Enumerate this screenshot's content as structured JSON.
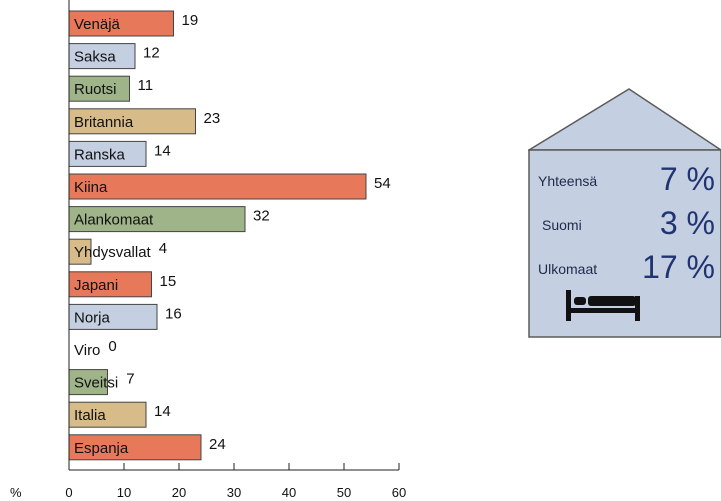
{
  "chart_data": {
    "type": "bar",
    "orientation": "horizontal",
    "categories": [
      "Venäjä",
      "Saksa",
      "Ruotsi",
      "Britannia",
      "Ranska",
      "Kiina",
      "Alankomaat",
      "Yhdysvallat",
      "Japani",
      "Norja",
      "Viro",
      "Sveitsi",
      "Italia",
      "Espanja"
    ],
    "values": [
      19,
      12,
      11,
      23,
      14,
      54,
      32,
      4,
      15,
      16,
      0,
      7,
      14,
      24
    ],
    "value_labels": [
      "19",
      "12",
      "11",
      "23",
      "14",
      "54",
      "32",
      "4",
      "15",
      "16",
      "0",
      "7",
      "14",
      "24"
    ],
    "colors": [
      "#e8785a",
      "#c5cfe2",
      "#9fb488",
      "#d7bc8a",
      "#c5cfe2",
      "#e8785a",
      "#9fb488",
      "#d7bc8a",
      "#e8785a",
      "#c5cfe2",
      "#c5cfe2",
      "#9fb488",
      "#d7bc8a",
      "#e8785a"
    ],
    "xlim": [
      0,
      60
    ],
    "xticks": [
      0,
      10,
      20,
      30,
      40,
      50,
      60
    ],
    "xtick_labels": [
      "0",
      "10",
      "20",
      "30",
      "40",
      "50",
      "60"
    ],
    "xlabel": "%",
    "grid": false
  },
  "summary": {
    "rows": [
      {
        "label": "Yhteensä",
        "value": "7 %"
      },
      {
        "label": "Suomi",
        "value": "3 %"
      },
      {
        "label": "Ulkomaat",
        "value": "17 %"
      }
    ],
    "icon": "bed-icon",
    "fill_color": "#c5cfe2",
    "outline_color": "#5a5a5a"
  }
}
